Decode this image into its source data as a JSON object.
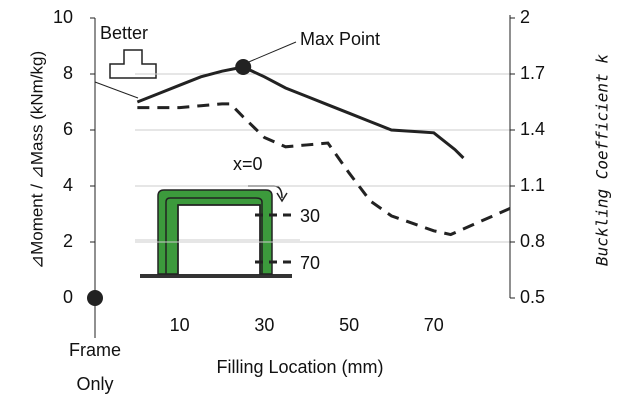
{
  "chart_data": {
    "type": "line",
    "y_label": "⊿Moment / ⊿Mass (kNm/kg)",
    "y2_label": "Buckling Coefficient k",
    "x_label": "Filling Location (mm)",
    "xlim": [
      -10,
      88
    ],
    "xticks": [
      10,
      30,
      50,
      70
    ],
    "ylim": [
      0,
      10
    ],
    "yticks": [
      0,
      2,
      4,
      6,
      8,
      10
    ],
    "y2lim": [
      0.5,
      2
    ],
    "y2ticks": [
      0.5,
      0.8,
      1.1,
      1.4,
      1.7,
      2
    ],
    "grid": true,
    "series": [
      {
        "color": "#222222",
        "style": "solid",
        "axis": "y",
        "x": [
          0,
          5,
          10,
          15,
          20,
          25,
          30,
          35,
          40,
          45,
          50,
          55,
          60,
          65,
          70,
          75,
          77
        ],
        "values": [
          7.0,
          7.3,
          7.6,
          7.9,
          8.1,
          8.25,
          7.9,
          7.5,
          7.2,
          6.9,
          6.6,
          6.3,
          6.0,
          5.95,
          5.9,
          5.3,
          5.0
        ]
      },
      {
        "color": "#222222",
        "style": "dashed",
        "axis": "y2",
        "x": [
          0,
          5,
          10,
          15,
          20,
          22,
          25,
          30,
          35,
          40,
          45,
          50,
          55,
          60,
          65,
          70,
          74,
          88
        ],
        "values": [
          1.52,
          1.52,
          1.52,
          1.53,
          1.54,
          1.54,
          1.47,
          1.36,
          1.31,
          1.32,
          1.33,
          1.17,
          1.02,
          0.94,
          0.9,
          0.86,
          0.84,
          0.98
        ]
      }
    ],
    "frame_only": {
      "label": "Frame Only",
      "value": 0
    },
    "annotations": {
      "better": "Better",
      "max_point": "Max Point",
      "x0": "x=0",
      "p30": "30",
      "p70": "70"
    }
  }
}
